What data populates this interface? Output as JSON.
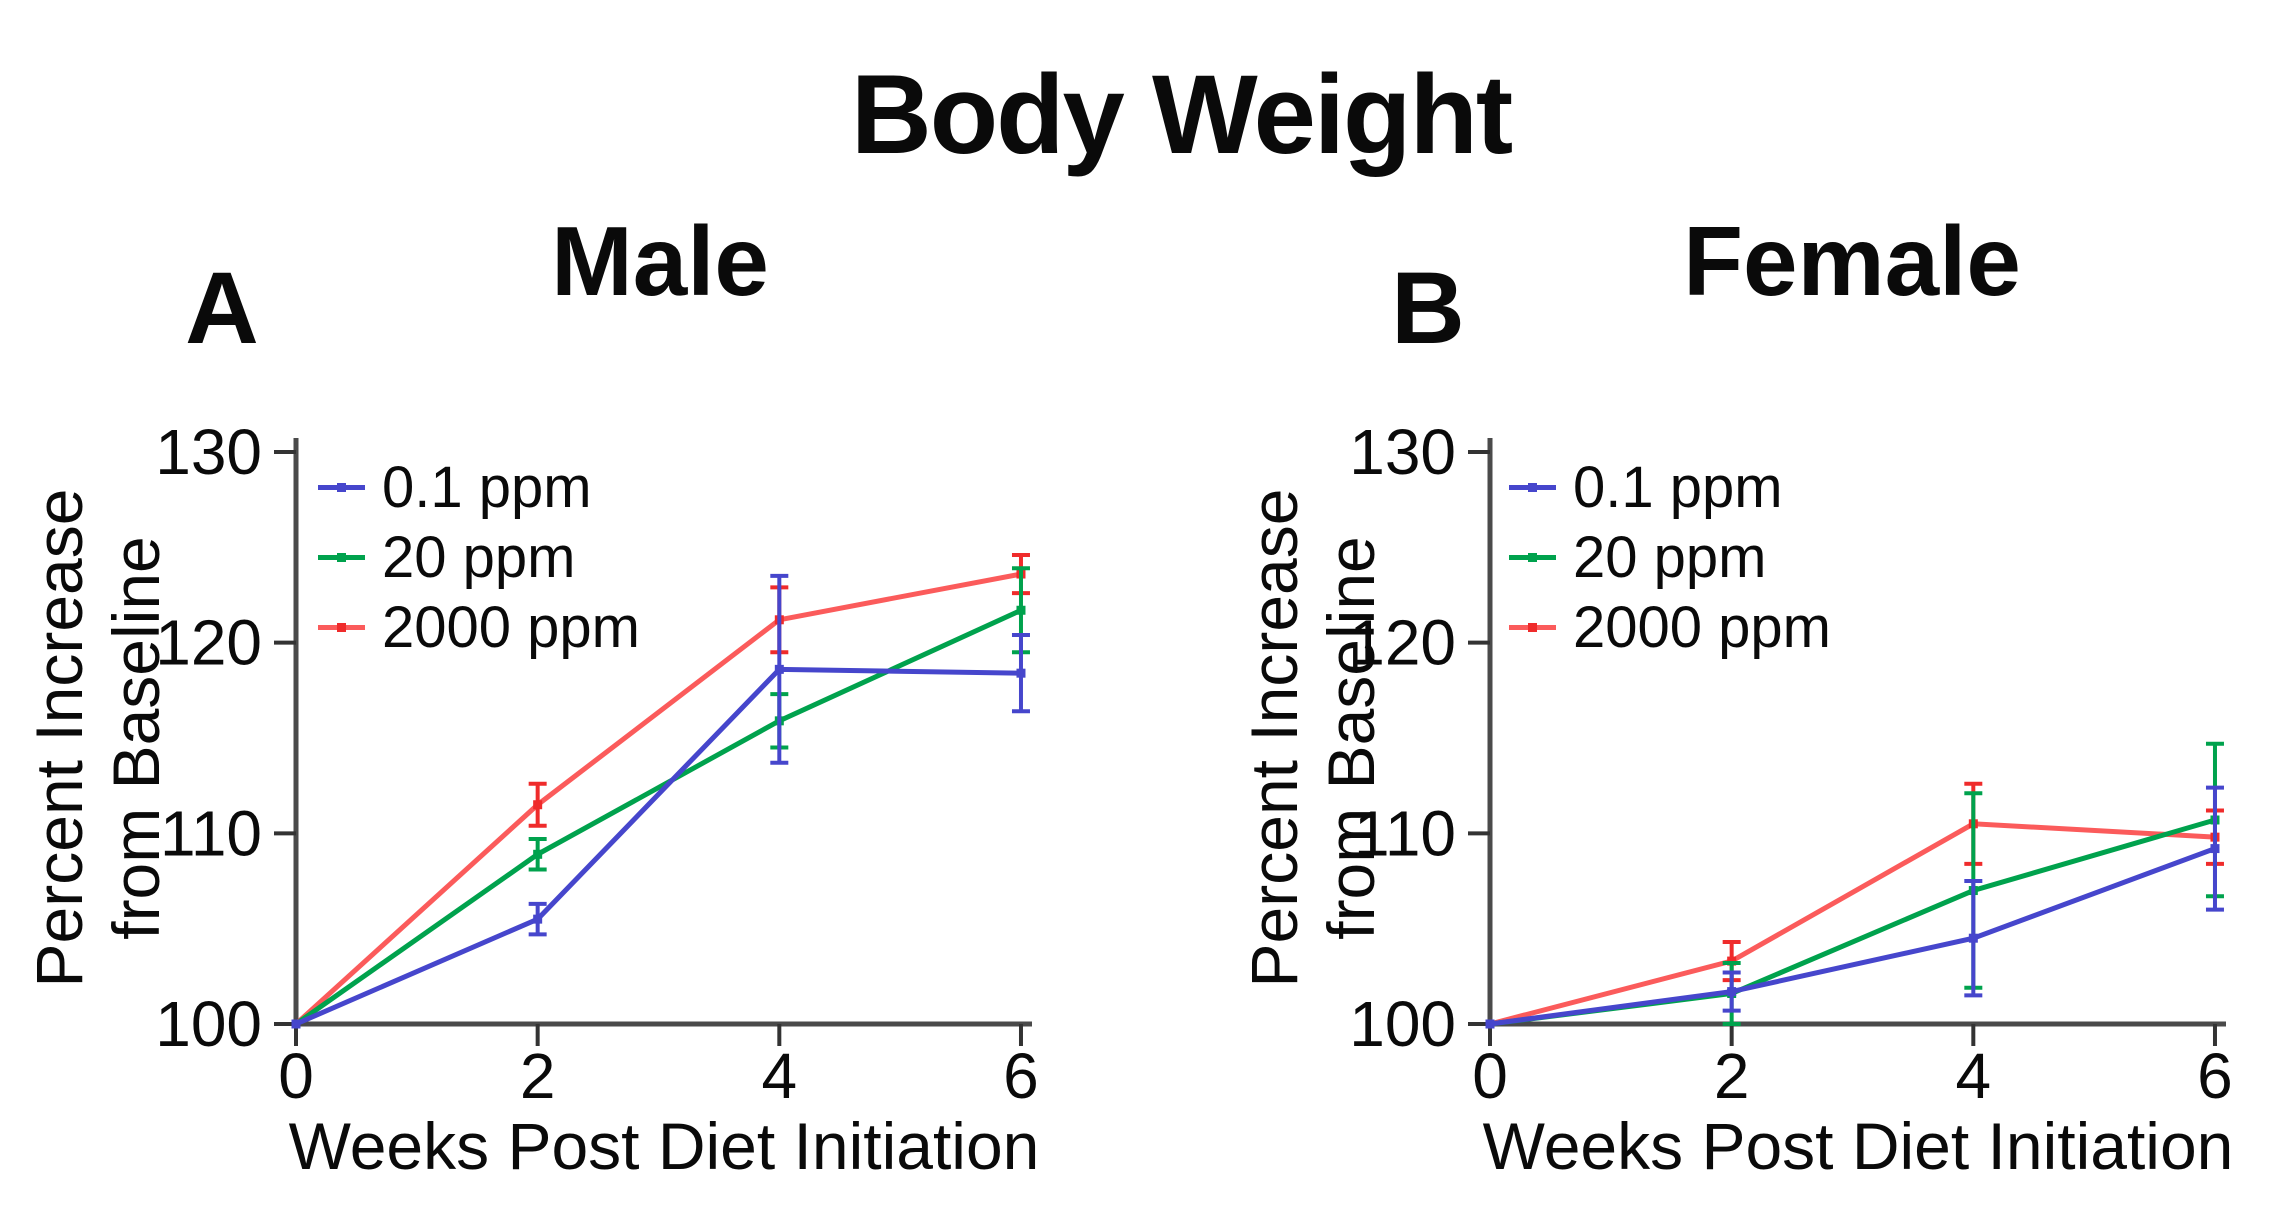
{
  "figure_title": "Body Weight",
  "colors": {
    "axis": "#4a4a4a",
    "tick": "#333333",
    "text": "#0a0a0a",
    "blue": "#4646cc",
    "green": "#00a24d",
    "red_line": "#fb5b5b",
    "red_marker": "#ef2b2b"
  },
  "chart_data": [
    {
      "type": "line",
      "panel_label": "A",
      "title": "Male",
      "xlabel": "Weeks Post Diet Initiation",
      "ylabel": "Percent Increase from Baseline",
      "ylabel_lines": [
        "Percent Increase",
        "from Baseline"
      ],
      "x": [
        0,
        2,
        4,
        6
      ],
      "xlim": [
        0,
        6
      ],
      "ylim": [
        100,
        130
      ],
      "xticks": [
        0,
        2,
        4,
        6
      ],
      "yticks": [
        100,
        110,
        120,
        130
      ],
      "grid": false,
      "legend_position": "top-left",
      "error_bars": true,
      "series": [
        {
          "name": "0.1 ppm",
          "color": "#4646cc",
          "marker_color": "#4646cc",
          "values": [
            100,
            105.5,
            118.6,
            118.4
          ],
          "errors": [
            0,
            0.8,
            4.9,
            2.0
          ]
        },
        {
          "name": "20 ppm",
          "color": "#00a24d",
          "marker_color": "#00a24d",
          "values": [
            100,
            108.9,
            115.9,
            121.7
          ],
          "errors": [
            0,
            0.8,
            1.4,
            2.2
          ]
        },
        {
          "name": "2000 ppm",
          "color": "#fb5b5b",
          "marker_color": "#ef2b2b",
          "values": [
            100,
            111.5,
            121.2,
            123.6
          ],
          "errors": [
            0,
            1.1,
            1.7,
            1.0
          ]
        }
      ]
    },
    {
      "type": "line",
      "panel_label": "B",
      "title": "Female",
      "xlabel": "Weeks Post Diet Initiation",
      "ylabel": "Percent Increase from Baseline",
      "ylabel_lines": [
        "Percent Increase",
        "from Baseline"
      ],
      "x": [
        0,
        2,
        4,
        6
      ],
      "xlim": [
        0,
        6
      ],
      "ylim": [
        100,
        130
      ],
      "xticks": [
        0,
        2,
        4,
        6
      ],
      "yticks": [
        100,
        110,
        120,
        130
      ],
      "grid": false,
      "legend_position": "top-left",
      "error_bars": true,
      "series": [
        {
          "name": "0.1 ppm",
          "color": "#4646cc",
          "marker_color": "#4646cc",
          "values": [
            100,
            101.7,
            104.5,
            109.2
          ],
          "errors": [
            0,
            1.0,
            3.0,
            3.2
          ]
        },
        {
          "name": "20 ppm",
          "color": "#00a24d",
          "marker_color": "#00a24d",
          "values": [
            100,
            101.6,
            107.0,
            110.7
          ],
          "errors": [
            0,
            1.6,
            5.1,
            4.0
          ]
        },
        {
          "name": "2000 ppm",
          "color": "#fb5b5b",
          "marker_color": "#ef2b2b",
          "values": [
            100,
            103.3,
            110.5,
            109.8
          ],
          "errors": [
            0,
            1.0,
            2.1,
            1.4
          ]
        }
      ]
    }
  ]
}
